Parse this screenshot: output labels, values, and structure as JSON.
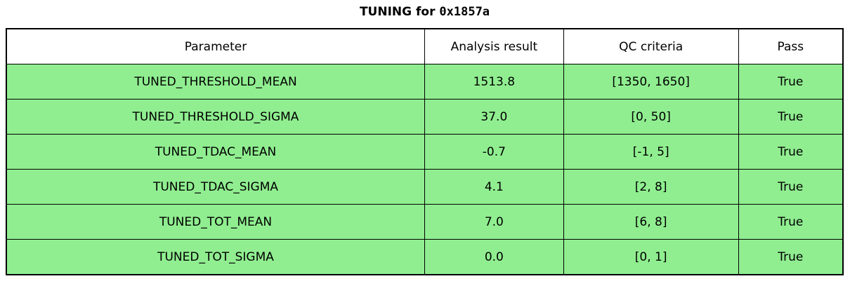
{
  "title": {
    "prefix": "TUNING for ",
    "chip_id": "0x1857a",
    "full": "TUNING for 0x1857a"
  },
  "chart_data": {
    "type": "table",
    "title": "TUNING for 0x1857a",
    "columns": [
      "Parameter",
      "Analysis result",
      "QC criteria",
      "Pass"
    ],
    "rows": [
      [
        "TUNED_THRESHOLD_MEAN",
        "1513.8",
        "[1350, 1650]",
        "True"
      ],
      [
        "TUNED_THRESHOLD_SIGMA",
        "37.0",
        "[0, 50]",
        "True"
      ],
      [
        "TUNED_TDAC_MEAN",
        "-0.7",
        "[-1, 5]",
        "True"
      ],
      [
        "TUNED_TDAC_SIGMA",
        "4.1",
        "[2, 8]",
        "True"
      ],
      [
        "TUNED_TOT_MEAN",
        "7.0",
        "[6, 8]",
        "True"
      ],
      [
        "TUNED_TOT_SIGMA",
        "0.0",
        "[0, 1]",
        "True"
      ]
    ],
    "layout": {
      "header_bg": "#FFFFFF",
      "pass_row_bg": "#90EE90",
      "border_color": "#000000",
      "grid": true,
      "legend": false
    }
  }
}
